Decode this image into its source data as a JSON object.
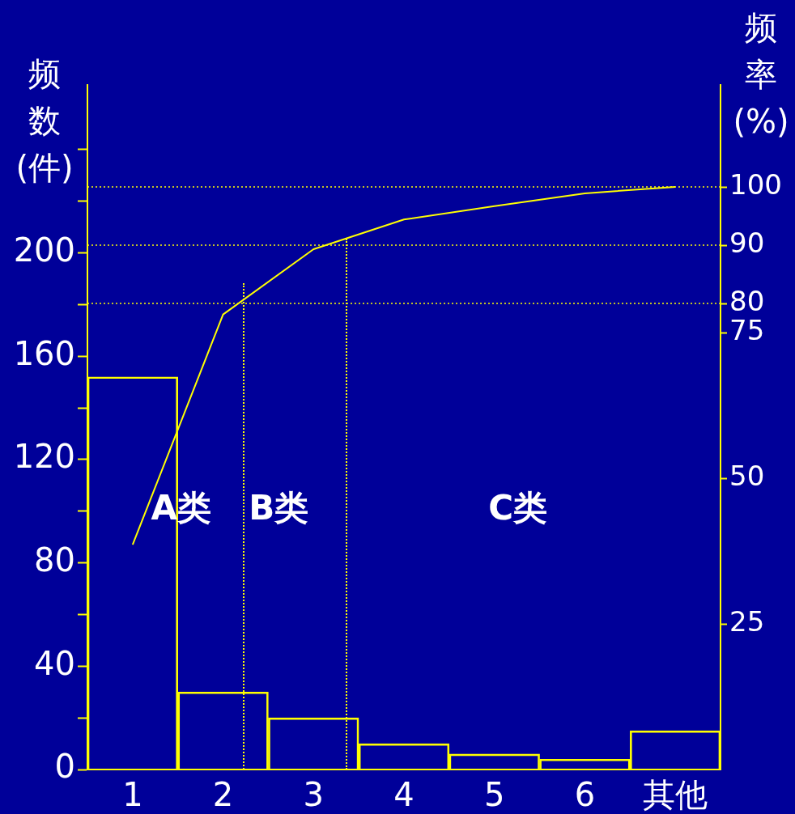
{
  "chart_data": {
    "type": "bar",
    "categories": [
      "1",
      "2",
      "3",
      "4",
      "5",
      "6",
      "其他"
    ],
    "series": [
      {
        "color": "#ffff00",
        "values": [
          152,
          30,
          20,
          10,
          6,
          4,
          15
        ]
      },
      {
        "type": "line",
        "axis": "y2",
        "color": "#ffff00",
        "values": [
          38.6,
          78.1,
          89.3,
          94.4,
          96.7,
          98.9,
          100
        ]
      }
    ],
    "ylabel": "频数(件)",
    "y2label": "频率(%)",
    "ylim": [
      0,
      265
    ],
    "yticks": [
      0,
      {
        "value": 20,
        "label": null
      },
      40,
      {
        "value": 60,
        "label": null
      },
      80,
      {
        "value": 100,
        "label": null
      },
      120,
      {
        "value": 140,
        "label": null
      },
      160,
      {
        "value": 180,
        "label": null
      },
      200,
      {
        "value": 220,
        "label": null
      },
      {
        "value": 240,
        "label": null
      }
    ],
    "y2lim": [
      0,
      117.5
    ],
    "y2ticks": [
      25,
      50,
      75,
      80,
      90,
      100
    ],
    "ref_lines": [
      {
        "axis": "y2",
        "value": 100,
        "line_style": "dotted",
        "color": "#ffff00"
      },
      {
        "axis": "y2",
        "value": 90,
        "line_style": "dotted",
        "color": "#ffff00"
      },
      {
        "axis": "y2",
        "value": 80,
        "line_style": "dotted",
        "color": "#ffff00"
      }
    ],
    "annotations": [
      "A类",
      "B类",
      "C类"
    ],
    "grid": false,
    "legend": false,
    "marker": "none"
  }
}
